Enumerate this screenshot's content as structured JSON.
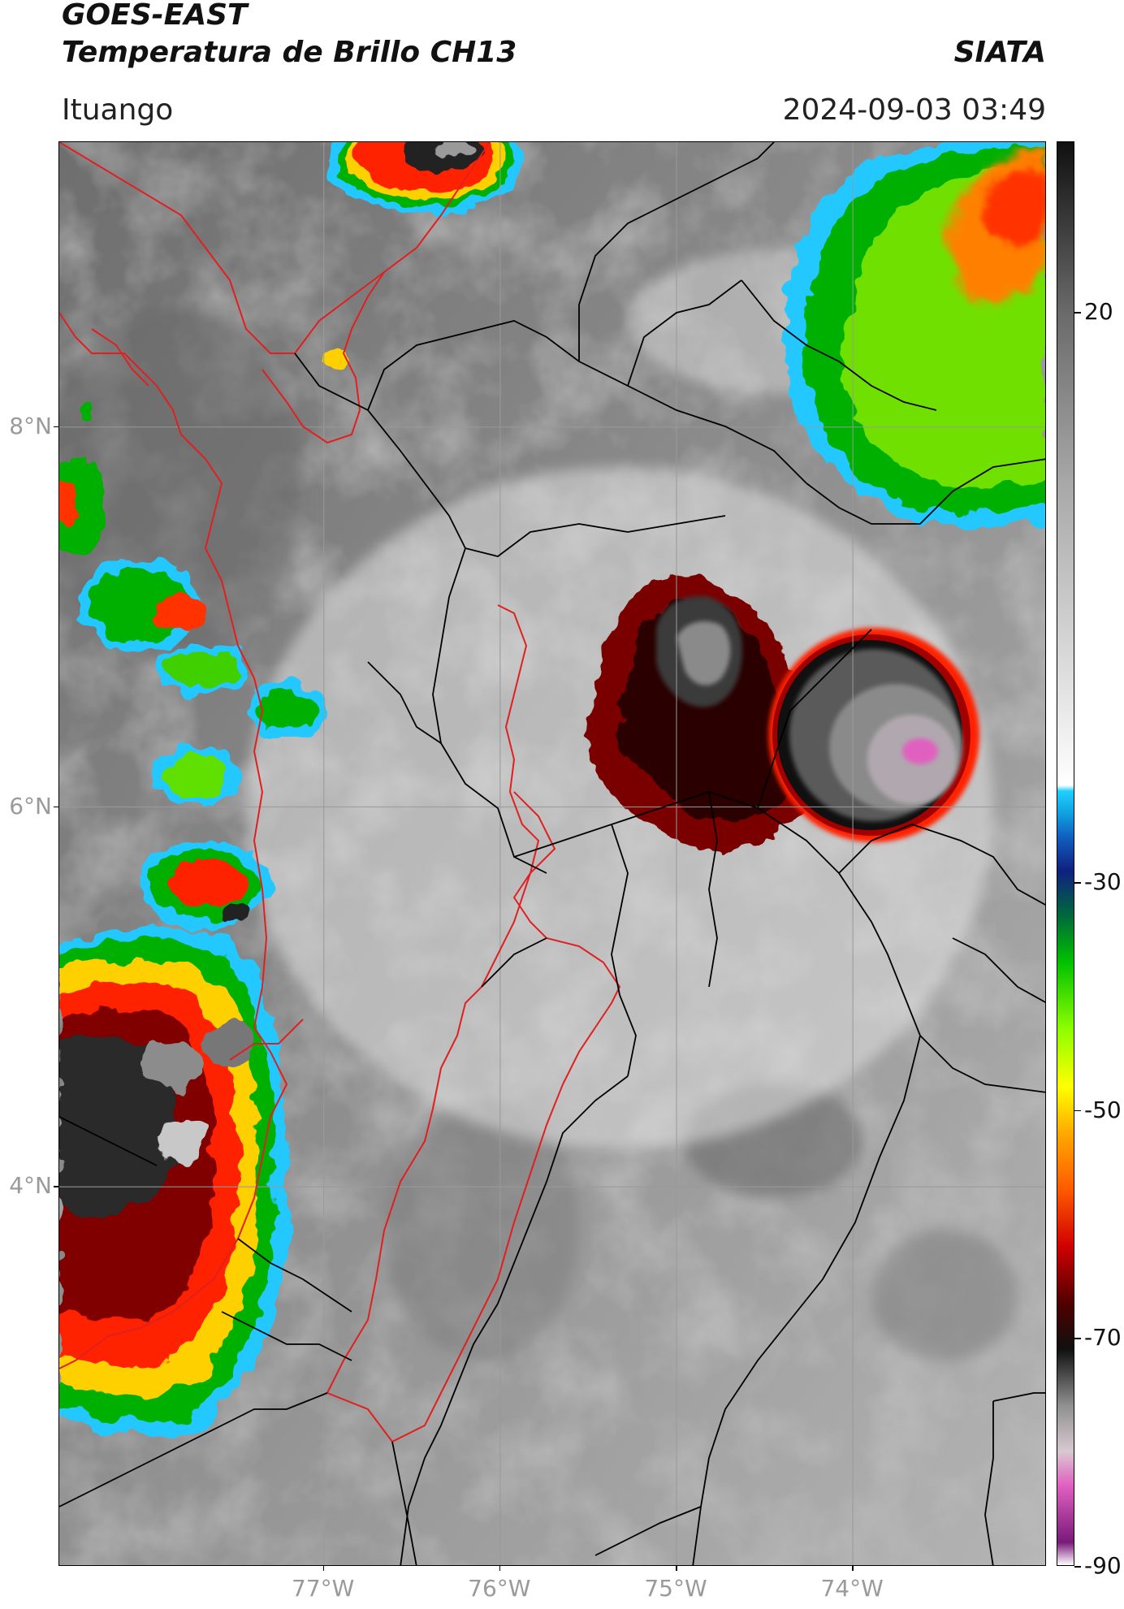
{
  "header": {
    "line1": "GOES-EAST",
    "line2": "Temperatura de Brillo CH13",
    "brand": "SIATA",
    "location": "Ituango",
    "datetime": "2024-09-03 03:49"
  },
  "map": {
    "lat_range": [
      2.0,
      9.5
    ],
    "lon_range": [
      -78.5,
      -72.9
    ],
    "lat_labels": [
      {
        "lat": 8,
        "text": "8°N"
      },
      {
        "lat": 6,
        "text": "6°N"
      },
      {
        "lat": 4,
        "text": "4°N"
      }
    ],
    "lon_labels": [
      {
        "lon": -77,
        "text": "77°W"
      },
      {
        "lon": -76,
        "text": "76°W"
      },
      {
        "lon": -75,
        "text": "75°W"
      },
      {
        "lon": -74,
        "text": "74°W"
      }
    ],
    "colors": {
      "coastline": "#e02020",
      "borders": "#000000",
      "gridlines": "#9a9a9a"
    }
  },
  "colorbar": {
    "range": [
      -90,
      35
    ],
    "tick_labels": [
      {
        "value": 20,
        "text": "20"
      },
      {
        "value": -30,
        "text": "-30"
      },
      {
        "value": -50,
        "text": "-50"
      },
      {
        "value": -70,
        "text": "-70"
      },
      {
        "value": -90,
        "text": "-90"
      }
    ],
    "stops": [
      {
        "value": -90,
        "color": "#ffffff"
      },
      {
        "value": -88,
        "color": "#7a1a7a"
      },
      {
        "value": -83,
        "color": "#e060c0"
      },
      {
        "value": -80,
        "color": "#d8c8d0"
      },
      {
        "value": -76,
        "color": "#909090"
      },
      {
        "value": -71,
        "color": "#101010"
      },
      {
        "value": -67,
        "color": "#500000"
      },
      {
        "value": -62,
        "color": "#d00000"
      },
      {
        "value": -57,
        "color": "#ff5a00"
      },
      {
        "value": -52,
        "color": "#ffaa00"
      },
      {
        "value": -48,
        "color": "#ffff00"
      },
      {
        "value": -43,
        "color": "#90ff00"
      },
      {
        "value": -37,
        "color": "#00c000"
      },
      {
        "value": -33,
        "color": "#006a3a"
      },
      {
        "value": -29,
        "color": "#102080"
      },
      {
        "value": -26,
        "color": "#1060c0"
      },
      {
        "value": -24,
        "color": "#10a0e0"
      },
      {
        "value": -22,
        "color": "#20d0ff"
      },
      {
        "value": -21.5,
        "color": "#ffffff"
      },
      {
        "value": -10,
        "color": "#d8d8d8"
      },
      {
        "value": 5,
        "color": "#a8a8a8"
      },
      {
        "value": 20,
        "color": "#6a6a6a"
      },
      {
        "value": 35,
        "color": "#101010"
      }
    ]
  }
}
